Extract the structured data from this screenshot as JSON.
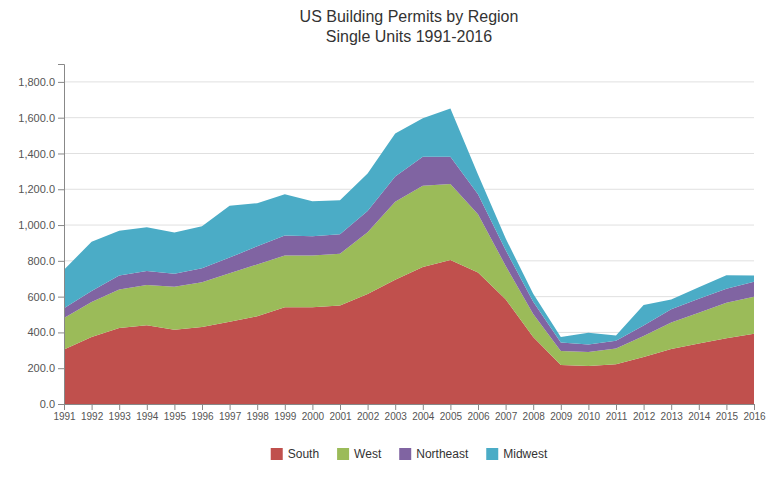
{
  "chart_data": {
    "type": "area",
    "title": "US Building Permits by Region\nSingle Units 1991-2016",
    "stacked": true,
    "grid": true,
    "legend": "bottom",
    "x": [
      1991,
      1992,
      1993,
      1994,
      1995,
      1996,
      1997,
      1998,
      1999,
      2000,
      2001,
      2002,
      2003,
      2004,
      2005,
      2006,
      2007,
      2008,
      2009,
      2010,
      2011,
      2012,
      2013,
      2014,
      2015,
      2016
    ],
    "xlim": [
      1991,
      2016
    ],
    "xticks": [
      1991,
      1992,
      1993,
      1994,
      1995,
      1996,
      1997,
      1998,
      1999,
      2000,
      2001,
      2002,
      2003,
      2004,
      2005,
      2006,
      2007,
      2008,
      2009,
      2010,
      2011,
      2012,
      2013,
      2014,
      2015,
      2016
    ],
    "ylim": [
      0,
      1900
    ],
    "yticks": [
      {
        "value": 0,
        "label": "0.0"
      },
      {
        "value": 200,
        "label": "200.0"
      },
      {
        "value": 400,
        "label": "400.0"
      },
      {
        "value": 600,
        "label": "600.0"
      },
      {
        "value": 800,
        "label": "800.0"
      },
      {
        "value": 1000,
        "label": "1,000.0"
      },
      {
        "value": 1200,
        "label": "1,200.0"
      },
      {
        "value": 1400,
        "label": "1,400.0"
      },
      {
        "value": 1600,
        "label": "1,600.0"
      },
      {
        "value": 1800,
        "label": "1,800.0"
      }
    ],
    "series": [
      {
        "name": "South",
        "color": "#c0504d",
        "values": [
          305,
          375,
          425,
          440,
          415,
          430,
          460,
          490,
          540,
          540,
          550,
          615,
          695,
          765,
          805,
          735,
          585,
          375,
          218,
          212,
          222,
          262,
          308,
          338,
          368,
          392
        ]
      },
      {
        "name": "West",
        "color": "#9bbb59",
        "values": [
          175,
          195,
          215,
          225,
          240,
          250,
          270,
          290,
          290,
          290,
          290,
          345,
          435,
          455,
          425,
          325,
          188,
          128,
          78,
          78,
          88,
          118,
          148,
          172,
          198,
          208
        ]
      },
      {
        "name": "Northeast",
        "color": "#8064a2",
        "values": [
          55,
          62,
          78,
          78,
          73,
          78,
          88,
          102,
          112,
          108,
          108,
          118,
          142,
          162,
          152,
          112,
          88,
          68,
          48,
          43,
          43,
          58,
          73,
          78,
          78,
          83
        ]
      },
      {
        "name": "Midwest",
        "color": "#4bacc6",
        "values": [
          215,
          275,
          250,
          245,
          230,
          235,
          290,
          240,
          230,
          195,
          190,
          210,
          240,
          215,
          270,
          110,
          65,
          45,
          30,
          65,
          30,
          115,
          55,
          65,
          75,
          35
        ]
      }
    ]
  }
}
